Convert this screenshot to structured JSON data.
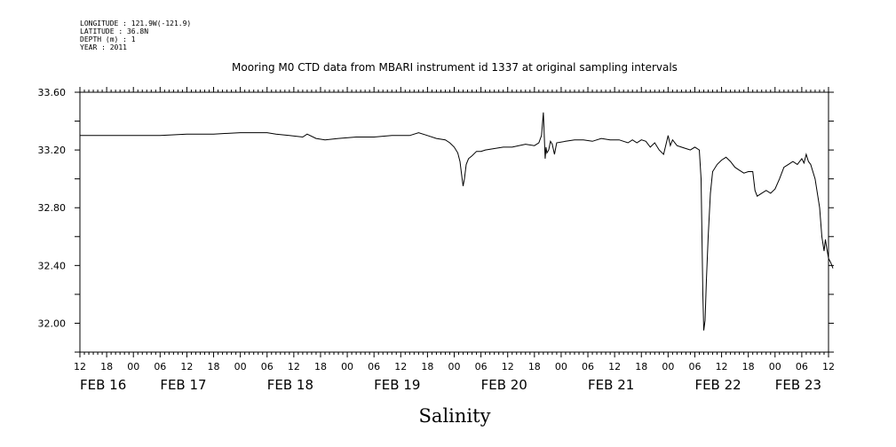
{
  "header": {
    "line1": "LONGITUDE : 121.9W(-121.9)",
    "line2": "LATITUDE : 36.8N",
    "line3": "DEPTH (m) : 1",
    "line4": "YEAR : 2011"
  },
  "chart_data": {
    "type": "line",
    "title": "Mooring M0 CTD data from MBARI instrument id 1337 at original sampling intervals",
    "xlabel": "Salinity",
    "ylabel": "",
    "x_unit": "hours since FEB 16 12:00",
    "xlim": [
      0,
      168
    ],
    "ylim": [
      31.8,
      33.6
    ],
    "y_ticks": [
      32.0,
      32.4,
      32.8,
      33.2,
      33.6
    ],
    "y_tick_labels": [
      "32.00",
      "32.40",
      "32.80",
      "33.20",
      "33.60"
    ],
    "x_hour_labels": [
      "12",
      "18",
      "00",
      "06",
      "12",
      "18",
      "00",
      "06",
      "12",
      "18",
      "00",
      "06",
      "12",
      "18",
      "00",
      "06",
      "12",
      "18",
      "00",
      "06",
      "12",
      "18",
      "00",
      "06",
      "12",
      "18",
      "00",
      "06",
      "12"
    ],
    "x_date_labels": [
      "FEB 16",
      "FEB 17",
      "FEB 18",
      "FEB 19",
      "FEB 20",
      "FEB 21",
      "FEB 22",
      "FEB 23"
    ],
    "x_date_positions": [
      0,
      18,
      42,
      66,
      90,
      114,
      138,
      156
    ],
    "grid": false,
    "series": [
      {
        "name": "",
        "points": [
          [
            0,
            33.3
          ],
          [
            6,
            33.3
          ],
          [
            12,
            33.3
          ],
          [
            18,
            33.3
          ],
          [
            24,
            33.31
          ],
          [
            30,
            33.31
          ],
          [
            36,
            33.32
          ],
          [
            40,
            33.32
          ],
          [
            42,
            33.32
          ],
          [
            44,
            33.31
          ],
          [
            47,
            33.3
          ],
          [
            50,
            33.29
          ],
          [
            51,
            33.31
          ],
          [
            53,
            33.28
          ],
          [
            55,
            33.27
          ],
          [
            58,
            33.28
          ],
          [
            62,
            33.29
          ],
          [
            66,
            33.29
          ],
          [
            70,
            33.3
          ],
          [
            74,
            33.3
          ],
          [
            76,
            33.32
          ],
          [
            78,
            33.3
          ],
          [
            80,
            33.28
          ],
          [
            82,
            33.27
          ],
          [
            83,
            33.25
          ],
          [
            84,
            33.22
          ],
          [
            84.8,
            33.18
          ],
          [
            85.3,
            33.12
          ],
          [
            85.7,
            33.02
          ],
          [
            86,
            32.95
          ],
          [
            86.3,
            33.0
          ],
          [
            86.7,
            33.1
          ],
          [
            87.2,
            33.14
          ],
          [
            88,
            33.16
          ],
          [
            89,
            33.19
          ],
          [
            90,
            33.19
          ],
          [
            91,
            33.2
          ],
          [
            93,
            33.21
          ],
          [
            95,
            33.22
          ],
          [
            97,
            33.22
          ],
          [
            100,
            33.24
          ],
          [
            102,
            33.23
          ],
          [
            103,
            33.25
          ],
          [
            103.6,
            33.3
          ],
          [
            104,
            33.46
          ],
          [
            104.2,
            33.3
          ],
          [
            104.4,
            33.14
          ],
          [
            104.6,
            33.22
          ],
          [
            104.8,
            33.18
          ],
          [
            105.2,
            33.2
          ],
          [
            105.6,
            33.26
          ],
          [
            106,
            33.24
          ],
          [
            106.5,
            33.17
          ],
          [
            107,
            33.25
          ],
          [
            109,
            33.26
          ],
          [
            111,
            33.27
          ],
          [
            113,
            33.27
          ],
          [
            115,
            33.26
          ],
          [
            117,
            33.28
          ],
          [
            119,
            33.27
          ],
          [
            121,
            33.27
          ],
          [
            123,
            33.25
          ],
          [
            124,
            33.27
          ],
          [
            125,
            33.25
          ],
          [
            126,
            33.27
          ],
          [
            127,
            33.26
          ],
          [
            128,
            33.22
          ],
          [
            129,
            33.25
          ],
          [
            130,
            33.2
          ],
          [
            131,
            33.17
          ],
          [
            132,
            33.3
          ],
          [
            132.5,
            33.23
          ],
          [
            133,
            33.27
          ],
          [
            134,
            33.23
          ],
          [
            135,
            33.22
          ],
          [
            136,
            33.21
          ],
          [
            137,
            33.2
          ],
          [
            138,
            33.22
          ],
          [
            139,
            33.2
          ],
          [
            139.4,
            33.0
          ],
          [
            139.6,
            32.6
          ],
          [
            139.8,
            32.2
          ],
          [
            140,
            31.95
          ],
          [
            140.3,
            32.02
          ],
          [
            140.6,
            32.3
          ],
          [
            141,
            32.6
          ],
          [
            141.5,
            32.9
          ],
          [
            142,
            33.05
          ],
          [
            143,
            33.1
          ],
          [
            144,
            33.13
          ],
          [
            145,
            33.15
          ],
          [
            146,
            33.12
          ],
          [
            147,
            33.08
          ],
          [
            148,
            33.06
          ],
          [
            149,
            33.04
          ],
          [
            150,
            33.05
          ],
          [
            151,
            33.05
          ],
          [
            151.5,
            32.92
          ],
          [
            152,
            32.88
          ],
          [
            153,
            32.9
          ],
          [
            154,
            32.92
          ],
          [
            155,
            32.9
          ],
          [
            156,
            32.93
          ],
          [
            157,
            33.0
          ],
          [
            158,
            33.08
          ],
          [
            159,
            33.1
          ],
          [
            160,
            33.12
          ],
          [
            161,
            33.1
          ],
          [
            162,
            33.14
          ],
          [
            162.5,
            33.11
          ],
          [
            163,
            33.17
          ],
          [
            163.5,
            33.12
          ],
          [
            164,
            33.1
          ],
          [
            165,
            33.0
          ],
          [
            166,
            32.8
          ],
          [
            166.5,
            32.6
          ],
          [
            167,
            32.5
          ],
          [
            167.3,
            32.58
          ],
          [
            167.6,
            32.52
          ],
          [
            168,
            32.45
          ],
          [
            168.5,
            32.42
          ],
          [
            169,
            32.38
          ]
        ]
      }
    ]
  }
}
